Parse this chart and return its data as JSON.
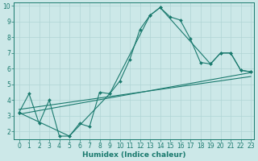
{
  "xlabel": "Humidex (Indice chaleur)",
  "xlim": [
    -0.5,
    23.3
  ],
  "ylim": [
    1.5,
    10.2
  ],
  "yticks": [
    2,
    3,
    4,
    5,
    6,
    7,
    8,
    9,
    10
  ],
  "xticks": [
    0,
    1,
    2,
    3,
    4,
    5,
    6,
    7,
    8,
    9,
    10,
    11,
    12,
    13,
    14,
    15,
    16,
    17,
    18,
    19,
    20,
    21,
    22,
    23
  ],
  "bg_color": "#cce8e8",
  "line_color": "#1a7a6e",
  "grid_color": "#b0d4d4",
  "line1_x": [
    0,
    1,
    2,
    3,
    4,
    5,
    6,
    7,
    8,
    9,
    10,
    11,
    12,
    13,
    14,
    15,
    16,
    17,
    18,
    19,
    20,
    21,
    22,
    23
  ],
  "line1_y": [
    3.2,
    4.4,
    2.5,
    4.0,
    1.7,
    1.7,
    2.5,
    2.3,
    4.5,
    4.4,
    5.2,
    6.6,
    8.5,
    9.4,
    9.9,
    9.3,
    9.1,
    7.9,
    6.4,
    6.3,
    7.0,
    7.0,
    5.9,
    5.8
  ],
  "line2_x": [
    0,
    5,
    9,
    13,
    14,
    19,
    20,
    21,
    22,
    23
  ],
  "line2_y": [
    3.2,
    1.7,
    4.4,
    9.4,
    9.9,
    6.3,
    7.0,
    7.0,
    5.9,
    5.8
  ],
  "line3_x": [
    0,
    23
  ],
  "line3_y": [
    3.4,
    5.5
  ],
  "line4_x": [
    0,
    23
  ],
  "line4_y": [
    3.1,
    5.75
  ],
  "tick_fontsize": 5.5,
  "xlabel_fontsize": 6.5
}
